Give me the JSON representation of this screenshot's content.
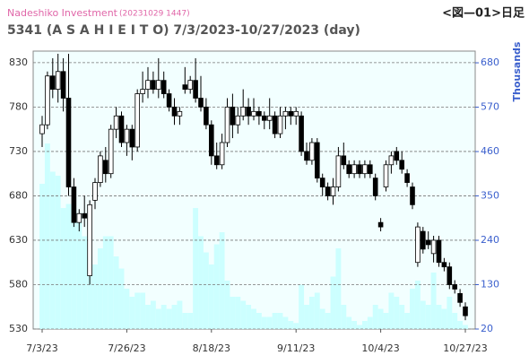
{
  "chart_data": {
    "type": "candlestick",
    "brand": "Nadeshiko Investment",
    "timestamp": "(20231029 1447)",
    "figure_label": "<図—01>日足",
    "title": "5341 (A S A H I   E I T O) 7/3/2023-10/27/2023 (day)",
    "y2_label": "Thousands",
    "categories": [
      "7/3/23",
      null,
      null,
      null,
      null,
      null,
      null,
      null,
      null,
      null,
      null,
      null,
      null,
      null,
      null,
      null,
      "7/26/23",
      null,
      null,
      null,
      null,
      null,
      null,
      null,
      null,
      null,
      null,
      null,
      null,
      null,
      null,
      null,
      "8/18/23",
      null,
      null,
      null,
      null,
      null,
      null,
      null,
      null,
      null,
      null,
      null,
      null,
      null,
      null,
      null,
      "9/11/23",
      null,
      null,
      null,
      null,
      null,
      null,
      null,
      null,
      null,
      null,
      null,
      null,
      null,
      null,
      null,
      "10/4/23",
      null,
      null,
      null,
      null,
      null,
      null,
      null,
      null,
      null,
      null,
      null,
      null,
      null,
      null,
      null,
      "10/27/23"
    ],
    "open": [
      750,
      760,
      815,
      800,
      820,
      790,
      690,
      650,
      660,
      590,
      675,
      695,
      720,
      705,
      755,
      770,
      740,
      755,
      735,
      795,
      800,
      810,
      800,
      810,
      795,
      780,
      770,
      805,
      800,
      810,
      790,
      780,
      760,
      725,
      715,
      740,
      780,
      760,
      770,
      780,
      770,
      775,
      770,
      765,
      770,
      750,
      770,
      775,
      770,
      770,
      730,
      720,
      740,
      700,
      690,
      680,
      690,
      725,
      715,
      705,
      715,
      705,
      715,
      700,
      650,
      690,
      715,
      730,
      720,
      705,
      690,
      605,
      640,
      630,
      615,
      630,
      605,
      600,
      580,
      570,
      555
    ],
    "high": [
      770,
      820,
      835,
      840,
      835,
      840,
      700,
      665,
      680,
      675,
      700,
      730,
      735,
      760,
      780,
      775,
      760,
      760,
      800,
      820,
      825,
      820,
      835,
      820,
      800,
      790,
      780,
      825,
      815,
      835,
      815,
      790,
      765,
      740,
      750,
      790,
      795,
      780,
      800,
      790,
      790,
      780,
      775,
      790,
      775,
      780,
      780,
      780,
      780,
      775,
      740,
      745,
      745,
      705,
      695,
      700,
      735,
      740,
      720,
      720,
      720,
      720,
      720,
      705,
      655,
      720,
      730,
      735,
      730,
      710,
      695,
      650,
      645,
      640,
      635,
      635,
      610,
      605,
      585,
      575,
      560
    ],
    "low": [
      735,
      755,
      790,
      785,
      775,
      680,
      645,
      640,
      645,
      580,
      665,
      690,
      695,
      700,
      745,
      735,
      725,
      720,
      730,
      785,
      790,
      795,
      790,
      790,
      775,
      760,
      760,
      795,
      795,
      785,
      775,
      755,
      715,
      710,
      710,
      735,
      745,
      750,
      765,
      760,
      765,
      760,
      755,
      755,
      745,
      745,
      755,
      760,
      760,
      725,
      715,
      715,
      695,
      680,
      675,
      670,
      685,
      710,
      700,
      700,
      700,
      700,
      700,
      675,
      640,
      685,
      705,
      715,
      705,
      690,
      665,
      600,
      615,
      620,
      605,
      600,
      595,
      575,
      570,
      555,
      540
    ],
    "close": [
      760,
      815,
      800,
      820,
      790,
      690,
      650,
      660,
      655,
      670,
      695,
      725,
      705,
      755,
      770,
      740,
      755,
      735,
      795,
      800,
      810,
      800,
      810,
      795,
      780,
      770,
      775,
      800,
      810,
      790,
      780,
      760,
      725,
      715,
      740,
      780,
      760,
      770,
      780,
      770,
      775,
      770,
      765,
      770,
      750,
      770,
      775,
      770,
      775,
      730,
      720,
      740,
      700,
      690,
      680,
      690,
      725,
      715,
      705,
      715,
      705,
      715,
      705,
      680,
      645,
      715,
      725,
      720,
      710,
      695,
      670,
      645,
      620,
      625,
      630,
      605,
      600,
      580,
      575,
      560,
      545
    ],
    "ylim": [
      530,
      843
    ],
    "yticks": [
      530,
      580,
      630,
      680,
      730,
      780,
      830
    ],
    "volume": {
      "axis": "y2",
      "color": "#ccffff",
      "values": [
        380,
        480,
        410,
        400,
        320,
        330,
        320,
        300,
        250,
        200,
        180,
        220,
        250,
        250,
        200,
        170,
        120,
        100,
        110,
        110,
        80,
        90,
        70,
        80,
        70,
        80,
        90,
        60,
        60,
        320,
        250,
        210,
        180,
        230,
        260,
        140,
        100,
        100,
        90,
        80,
        70,
        60,
        50,
        50,
        60,
        60,
        50,
        40,
        35,
        130,
        80,
        100,
        110,
        70,
        60,
        150,
        220,
        80,
        50,
        40,
        30,
        40,
        50,
        80,
        70,
        60,
        110,
        100,
        80,
        60,
        120,
        140,
        90,
        80,
        160,
        80,
        70,
        100,
        60,
        40,
        30
      ]
    },
    "y2lim": [
      20,
      709
    ],
    "y2ticks": [
      20,
      130,
      240,
      350,
      460,
      570,
      680
    ],
    "grid": true
  }
}
